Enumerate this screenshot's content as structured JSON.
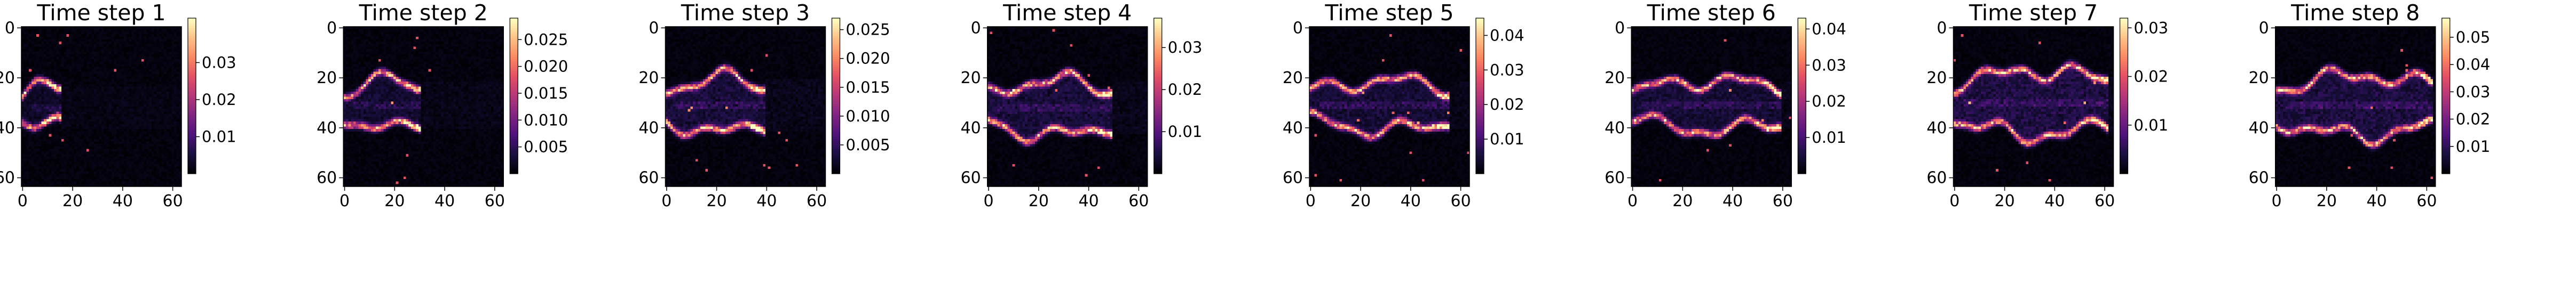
{
  "chart_data": [
    {
      "type": "heatmap",
      "title": "Time step 1",
      "colormap": "magma",
      "grid_size": 64,
      "xlim": [
        0,
        63
      ],
      "ylim": [
        63,
        0
      ],
      "xticks": [
        "0",
        "20",
        "40",
        "60"
      ],
      "yticks": [
        "0",
        "20",
        "40",
        "60"
      ],
      "colorbar": {
        "range": [
          0,
          0.042
        ],
        "ticks": [
          {
            "value": 0.01,
            "label": "0.01"
          },
          {
            "value": 0.02,
            "label": "0.02"
          },
          {
            "value": 0.03,
            "label": "0.03"
          }
        ]
      },
      "pattern": {
        "tip_x": 14,
        "center_y": 32,
        "half_width": 9,
        "noise": 0.1
      }
    },
    {
      "type": "heatmap",
      "title": "Time step 2",
      "colormap": "magma",
      "grid_size": 64,
      "xlim": [
        0,
        63
      ],
      "ylim": [
        63,
        0
      ],
      "xticks": [
        "0",
        "20",
        "40",
        "60"
      ],
      "yticks": [
        "0",
        "20",
        "40",
        "60"
      ],
      "colorbar": {
        "range": [
          0,
          0.029
        ],
        "ticks": [
          {
            "value": 0.005,
            "label": "0.005"
          },
          {
            "value": 0.01,
            "label": "0.010"
          },
          {
            "value": 0.015,
            "label": "0.015"
          },
          {
            "value": 0.02,
            "label": "0.020"
          },
          {
            "value": 0.025,
            "label": "0.025"
          }
        ]
      },
      "pattern": {
        "tip_x": 29,
        "center_y": 31,
        "half_width": 10,
        "noise": 0.14
      }
    },
    {
      "type": "heatmap",
      "title": "Time step 3",
      "colormap": "magma",
      "grid_size": 64,
      "xlim": [
        0,
        63
      ],
      "ylim": [
        63,
        0
      ],
      "xticks": [
        "0",
        "20",
        "40",
        "60"
      ],
      "yticks": [
        "0",
        "20",
        "40",
        "60"
      ],
      "colorbar": {
        "range": [
          0,
          0.027
        ],
        "ticks": [
          {
            "value": 0.005,
            "label": "0.005"
          },
          {
            "value": 0.01,
            "label": "0.010"
          },
          {
            "value": 0.015,
            "label": "0.015"
          },
          {
            "value": 0.02,
            "label": "0.020"
          },
          {
            "value": 0.025,
            "label": "0.025"
          }
        ]
      },
      "pattern": {
        "tip_x": 38,
        "center_y": 31,
        "half_width": 11,
        "noise": 0.18
      }
    },
    {
      "type": "heatmap",
      "title": "Time step 4",
      "colormap": "magma",
      "grid_size": 64,
      "xlim": [
        0,
        63
      ],
      "ylim": [
        63,
        0
      ],
      "xticks": [
        "0",
        "20",
        "40",
        "60"
      ],
      "yticks": [
        "0",
        "20",
        "40",
        "60"
      ],
      "colorbar": {
        "range": [
          0,
          0.037
        ],
        "ticks": [
          {
            "value": 0.01,
            "label": "0.01"
          },
          {
            "value": 0.02,
            "label": "0.02"
          },
          {
            "value": 0.03,
            "label": "0.03"
          }
        ]
      },
      "pattern": {
        "tip_x": 48,
        "center_y": 32,
        "half_width": 11,
        "noise": 0.18
      }
    },
    {
      "type": "heatmap",
      "title": "Time step 5",
      "colormap": "magma",
      "grid_size": 64,
      "xlim": [
        0,
        63
      ],
      "ylim": [
        63,
        0
      ],
      "xticks": [
        "0",
        "20",
        "40",
        "60"
      ],
      "yticks": [
        "0",
        "20",
        "40",
        "60"
      ],
      "colorbar": {
        "range": [
          0,
          0.045
        ],
        "ticks": [
          {
            "value": 0.01,
            "label": "0.01"
          },
          {
            "value": 0.02,
            "label": "0.02"
          },
          {
            "value": 0.03,
            "label": "0.03"
          },
          {
            "value": 0.04,
            "label": "0.04"
          }
        ]
      },
      "pattern": {
        "tip_x": 54,
        "center_y": 31,
        "half_width": 10,
        "noise": 0.16
      }
    },
    {
      "type": "heatmap",
      "title": "Time step 6",
      "colormap": "magma",
      "grid_size": 64,
      "xlim": [
        0,
        63
      ],
      "ylim": [
        63,
        0
      ],
      "xticks": [
        "0",
        "20",
        "40",
        "60"
      ],
      "yticks": [
        "0",
        "20",
        "40",
        "60"
      ],
      "colorbar": {
        "range": [
          0,
          0.043
        ],
        "ticks": [
          {
            "value": 0.01,
            "label": "0.01"
          },
          {
            "value": 0.02,
            "label": "0.02"
          },
          {
            "value": 0.03,
            "label": "0.03"
          },
          {
            "value": 0.04,
            "label": "0.04"
          }
        ]
      },
      "pattern": {
        "tip_x": 58,
        "center_y": 31,
        "half_width": 10,
        "noise": 0.16
      }
    },
    {
      "type": "heatmap",
      "title": "Time step 7",
      "colormap": "magma",
      "grid_size": 64,
      "xlim": [
        0,
        63
      ],
      "ylim": [
        63,
        0
      ],
      "xticks": [
        "0",
        "20",
        "40",
        "60"
      ],
      "yticks": [
        "0",
        "20",
        "40",
        "60"
      ],
      "colorbar": {
        "range": [
          0,
          0.032
        ],
        "ticks": [
          {
            "value": 0.01,
            "label": "0.01"
          },
          {
            "value": 0.02,
            "label": "0.02"
          },
          {
            "value": 0.03,
            "label": "0.03"
          }
        ]
      },
      "pattern": {
        "tip_x": 60,
        "center_y": 30,
        "half_width": 13,
        "noise": 0.22
      }
    },
    {
      "type": "heatmap",
      "title": "Time step 8",
      "colormap": "magma",
      "grid_size": 64,
      "xlim": [
        0,
        63
      ],
      "ylim": [
        63,
        0
      ],
      "xticks": [
        "0",
        "20",
        "40",
        "60"
      ],
      "yticks": [
        "0",
        "20",
        "40",
        "60"
      ],
      "colorbar": {
        "range": [
          0,
          0.057
        ],
        "ticks": [
          {
            "value": 0.01,
            "label": "0.01"
          },
          {
            "value": 0.02,
            "label": "0.02"
          },
          {
            "value": 0.03,
            "label": "0.03"
          },
          {
            "value": 0.04,
            "label": "0.04"
          },
          {
            "value": 0.05,
            "label": "0.05"
          }
        ]
      },
      "pattern": {
        "tip_x": 61,
        "center_y": 31,
        "half_width": 12,
        "noise": 0.2
      }
    }
  ]
}
